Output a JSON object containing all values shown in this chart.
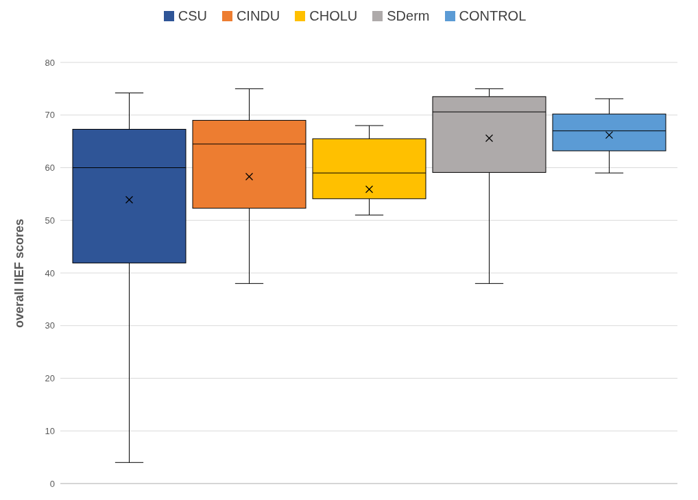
{
  "chart_data": {
    "type": "box",
    "ylabel": "overall IIEF scores",
    "categories": [
      null
    ],
    "ylim": [
      0,
      80
    ],
    "yticks": [
      0,
      10,
      20,
      30,
      40,
      50,
      60,
      70,
      80
    ],
    "grid": "y",
    "legend": "top",
    "series": [
      {
        "name": "CSU",
        "color": "#2f5597",
        "boxes": [
          {
            "low": 4,
            "q1": 41.9,
            "median": 60,
            "q3": 67.3,
            "high": 74.2,
            "mean": 53.9
          }
        ]
      },
      {
        "name": "CINDU",
        "color": "#ed7d31",
        "boxes": [
          {
            "low": 38,
            "q1": 52.3,
            "median": 64.5,
            "q3": 69,
            "high": 75,
            "mean": 58.3
          }
        ]
      },
      {
        "name": "CHOLU",
        "color": "#ffc000",
        "boxes": [
          {
            "low": 51,
            "q1": 54.1,
            "median": 59,
            "q3": 65.5,
            "high": 68,
            "mean": 55.9
          }
        ]
      },
      {
        "name": "SDerm",
        "color": "#aeaaaa",
        "boxes": [
          {
            "low": 38,
            "q1": 59.1,
            "median": 70.6,
            "q3": 73.5,
            "high": 75,
            "mean": 65.6
          }
        ]
      },
      {
        "name": "CONTROL",
        "color": "#5b9bd5",
        "boxes": [
          {
            "low": 59,
            "q1": 63.2,
            "median": 67,
            "q3": 70.2,
            "high": 73.1,
            "mean": 66.2
          }
        ]
      }
    ]
  }
}
